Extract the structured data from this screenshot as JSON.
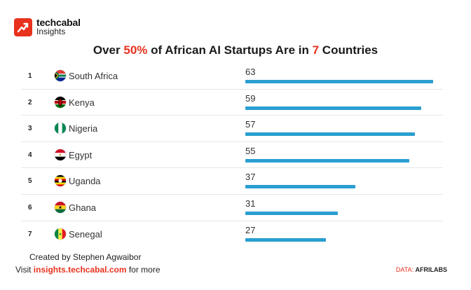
{
  "brand": {
    "name": "techcabal",
    "sub": "Insights",
    "color": "#e8321e"
  },
  "title": {
    "pre": "Over ",
    "hl1": "50%",
    "mid": " of African AI Startups Are in ",
    "hl2": "7",
    "post": " Countries"
  },
  "chart_data": {
    "type": "bar",
    "orientation": "horizontal",
    "title": "Over 50% of African AI Startups Are in 7 Countries",
    "bar_color": "#2a9fd0",
    "xlim": [
      0,
      63
    ],
    "rows": [
      {
        "rank": "1",
        "country": "South Africa",
        "value": 63,
        "flag": "south-africa"
      },
      {
        "rank": "2",
        "country": "Kenya",
        "value": 59,
        "flag": "kenya"
      },
      {
        "rank": "3",
        "country": "Nigeria",
        "value": 57,
        "flag": "nigeria"
      },
      {
        "rank": "4",
        "country": "Egypt",
        "value": 55,
        "flag": "egypt"
      },
      {
        "rank": "5",
        "country": "Uganda",
        "value": 37,
        "flag": "uganda"
      },
      {
        "rank": "6",
        "country": "Ghana",
        "value": 31,
        "flag": "ghana"
      },
      {
        "rank": "7",
        "country": "Senegal",
        "value": 27,
        "flag": "senegal"
      }
    ]
  },
  "footer": {
    "credit": "Created by Stephen Agwaibor",
    "visit_pre": "Visit ",
    "visit_url": "insights.techcabal.com",
    "visit_post": " for more",
    "source_label": "DATA: ",
    "source_org": "AFRILABS"
  }
}
